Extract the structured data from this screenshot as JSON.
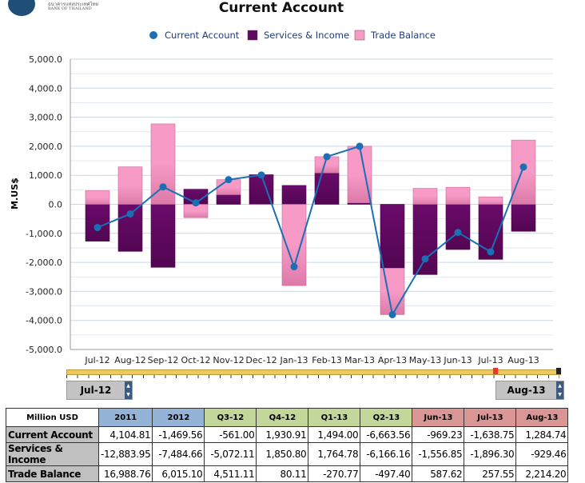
{
  "logo": {
    "thai": "ธนาคารแห่งประเทศไทย",
    "english": "BANK OF THAILAND"
  },
  "chart_data": {
    "type": "bar",
    "title": "Current Account",
    "ylabel": "M.US$",
    "xlabel": "",
    "ylim": [
      -5000,
      5000
    ],
    "yticks": [
      "5,000.0",
      "4,000.0",
      "3,000.0",
      "2,000.0",
      "1,000.0",
      "0.0",
      "-1,000.0",
      "-2,000.0",
      "-3,000.0",
      "-4,000.0",
      "-5,000.0"
    ],
    "grid": true,
    "legend": "top",
    "categories": [
      "Jul-12",
      "Aug-12",
      "Sep-12",
      "Oct-12",
      "Nov-12",
      "Dec-12",
      "Jan-13",
      "Feb-13",
      "Mar-13",
      "Apr-13",
      "May-13",
      "Jun-13",
      "Jul-13",
      "Aug-13"
    ],
    "series": [
      {
        "name": "Current Account",
        "type": "line",
        "color": "#1a6fb5",
        "values": [
          -800,
          -330,
          600,
          50,
          850,
          1010,
          -2150,
          1640,
          2000,
          -3800,
          -1880,
          -969.23,
          -1638.75,
          1284.74
        ]
      },
      {
        "name": "Services & Income",
        "type": "stacked-bar",
        "color": "#5f0a5f",
        "values": [
          -1270,
          -1620,
          -2170,
          520,
          330,
          1020,
          650,
          1080,
          50,
          -2200,
          -2420,
          -1556.85,
          -1896.3,
          -929.46
        ]
      },
      {
        "name": "Trade Balance",
        "type": "stacked-bar",
        "color": "#f79ac6",
        "values": [
          470,
          1290,
          2770,
          -460,
          520,
          -10,
          -2800,
          560,
          1950,
          -1600,
          550,
          587.62,
          257.55,
          2214.2
        ]
      }
    ]
  },
  "range": {
    "start": "Jul-12",
    "end": "Aug-13"
  },
  "table": {
    "corner": "Million USD",
    "headers": [
      "2011",
      "2012",
      "Q3-12",
      "Q4-12",
      "Q1-13",
      "Q2-13",
      "Jun-13",
      "Jul-13",
      "Aug-13"
    ],
    "header_colors": [
      "#95b3d7",
      "#95b3d7",
      "#c4d79b",
      "#c4d79b",
      "#c4d79b",
      "#c4d79b",
      "#da9694",
      "#da9694",
      "#da9694"
    ],
    "rows": [
      {
        "label": "Current Account",
        "values": [
          "4,104.81",
          "-1,469.56",
          "-561.00",
          "1,930.91",
          "1,494.00",
          "-6,663.56",
          "-969.23",
          "-1,638.75",
          "1,284.74"
        ]
      },
      {
        "label": "Services & Income",
        "values": [
          "-12,883.95",
          "-7,484.66",
          "-5,072.11",
          "1,850.80",
          "1,764.78",
          "-6,166.16",
          "-1,556.85",
          "-1,896.30",
          "-929.46"
        ]
      },
      {
        "label": "Trade Balance",
        "values": [
          "16,988.76",
          "6,015.10",
          "4,511.11",
          "80.11",
          "-270.77",
          "-497.40",
          "587.62",
          "257.55",
          "2,214.20"
        ]
      }
    ]
  }
}
